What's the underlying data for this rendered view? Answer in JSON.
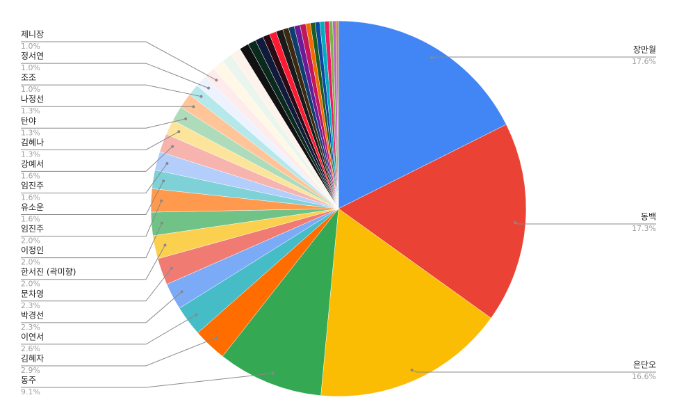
{
  "chart_data": {
    "type": "pie",
    "categories": [
      "장만월",
      "동백",
      "은단오",
      "동주",
      "김혜자",
      "이연서",
      "박경선",
      "문차영",
      "한서진 (곽미향)",
      "이정인",
      "임진주",
      "유소운",
      "임진주",
      "강예서",
      "김혜나",
      "탄야",
      "나정선",
      "조조",
      "정서연",
      "제니장",
      null,
      null,
      null,
      null,
      null,
      null,
      null,
      null,
      null,
      null,
      null,
      null,
      null,
      null,
      null,
      null,
      null,
      null,
      null,
      null,
      null
    ],
    "values": [
      17.6,
      17.3,
      16.6,
      9.1,
      2.9,
      2.6,
      2.3,
      2.3,
      2.0,
      2.0,
      2.0,
      1.6,
      1.6,
      1.6,
      1.3,
      1.3,
      1.3,
      1.0,
      1.0,
      1.0,
      1.0,
      0.9,
      0.9,
      0.8,
      0.7,
      0.7,
      0.6,
      0.6,
      0.6,
      0.5,
      0.5,
      0.5,
      0.5,
      0.4,
      0.4,
      0.4,
      0.4,
      0.4,
      0.3,
      0.3,
      0.2
    ],
    "value_labels": [
      "17.6%",
      "17.3%",
      "16.6%",
      "9.1%",
      "2.9%",
      "2.6%",
      "2.3%",
      "2.3%",
      "2.0%",
      "2.0%",
      "2.0%",
      "1.6%",
      "1.6%",
      "1.6%",
      "1.3%",
      "1.3%",
      "1.3%",
      "1.0%",
      "1.0%",
      "1.0%",
      null,
      null,
      null,
      null,
      null,
      null,
      null,
      null,
      null,
      null,
      null,
      null,
      null,
      null,
      null,
      null,
      null,
      null,
      null,
      null,
      null
    ],
    "colors": [
      "#4285f4",
      "#ea4335",
      "#fbbc04",
      "#34a853",
      "#ff6d01",
      "#46bdc6",
      "#7baaf7",
      "#f07b72",
      "#fcd04f",
      "#71c287",
      "#ff994d",
      "#7ed1d7",
      "#b3cefb",
      "#f7b4ae",
      "#fde49b",
      "#aedcba",
      "#ffc599",
      "#b5e8eb",
      "#ecf3fe",
      "#fdeceb",
      "#fff8e6",
      "#eaf6ed",
      "#fef3ec",
      "#111111",
      "#0b2a1e",
      "#101a3a",
      "#2a0a14",
      "#ff1a33",
      "#1a1a1a",
      "#3b2a10",
      "#0f3d6e",
      "#6a1b9a",
      "#c2185b",
      "#ef6c00",
      "#1b5e20",
      "#0d47a1",
      "#00acc1",
      "#e91e63",
      "#7cb342",
      "#ba68c8",
      "#d08a2c"
    ]
  }
}
